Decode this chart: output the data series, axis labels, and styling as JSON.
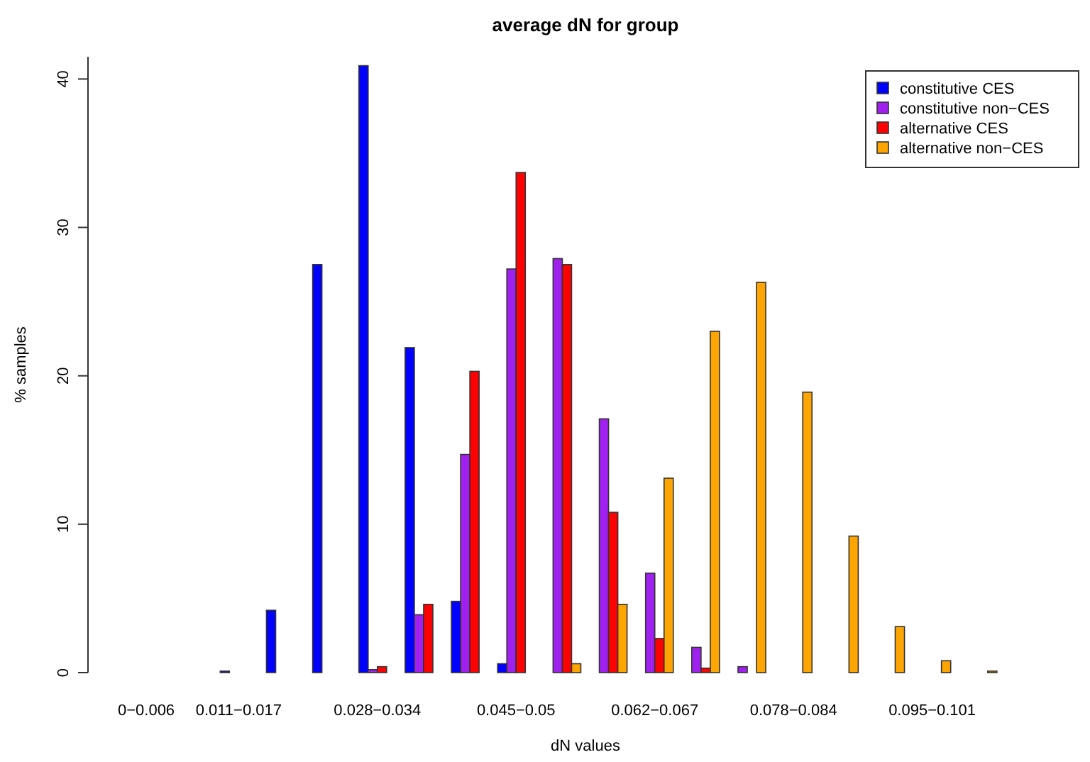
{
  "chart_data": {
    "type": "bar",
    "title": "average dN for group",
    "xlabel": "dN values",
    "ylabel": "% samples",
    "categories": [
      "0−0.006",
      null,
      "0.011−0.017",
      null,
      null,
      "0.028−0.034",
      null,
      null,
      "0.045−0.05",
      null,
      null,
      "0.062−0.067",
      null,
      null,
      "0.078−0.084",
      null,
      null,
      "0.095−0.101",
      null,
      null
    ],
    "series": [
      {
        "name": "constitutive CES",
        "color": "#0000ff",
        "values": [
          0,
          0,
          0.1,
          4.2,
          27.5,
          40.9,
          21.9,
          4.8,
          0.6,
          0,
          0,
          0,
          0,
          0,
          0,
          0,
          0,
          0,
          0,
          0
        ]
      },
      {
        "name": "constitutive non−CES",
        "color": "#a020f0",
        "values": [
          0,
          0,
          0,
          0,
          0,
          0.2,
          3.9,
          14.7,
          27.2,
          27.9,
          17.1,
          6.7,
          1.7,
          0.4,
          0,
          0,
          0,
          0,
          0,
          0
        ]
      },
      {
        "name": "alternative CES",
        "color": "#ff0000",
        "values": [
          0,
          0,
          0,
          0,
          0,
          0.4,
          4.6,
          20.3,
          33.7,
          27.5,
          10.8,
          2.3,
          0.3,
          0,
          0,
          0,
          0,
          0,
          0,
          0
        ]
      },
      {
        "name": "alternative non−CES",
        "color": "#ffa500",
        "values": [
          0,
          0,
          0,
          0,
          0,
          0,
          0,
          0,
          0,
          0.6,
          4.6,
          13.1,
          23.0,
          26.3,
          18.9,
          9.2,
          3.1,
          0.8,
          0.1,
          0
        ]
      }
    ],
    "ylim": [
      0,
      41.5
    ],
    "yticks": [
      0,
      10,
      20,
      30,
      40
    ],
    "legend": "top right"
  }
}
